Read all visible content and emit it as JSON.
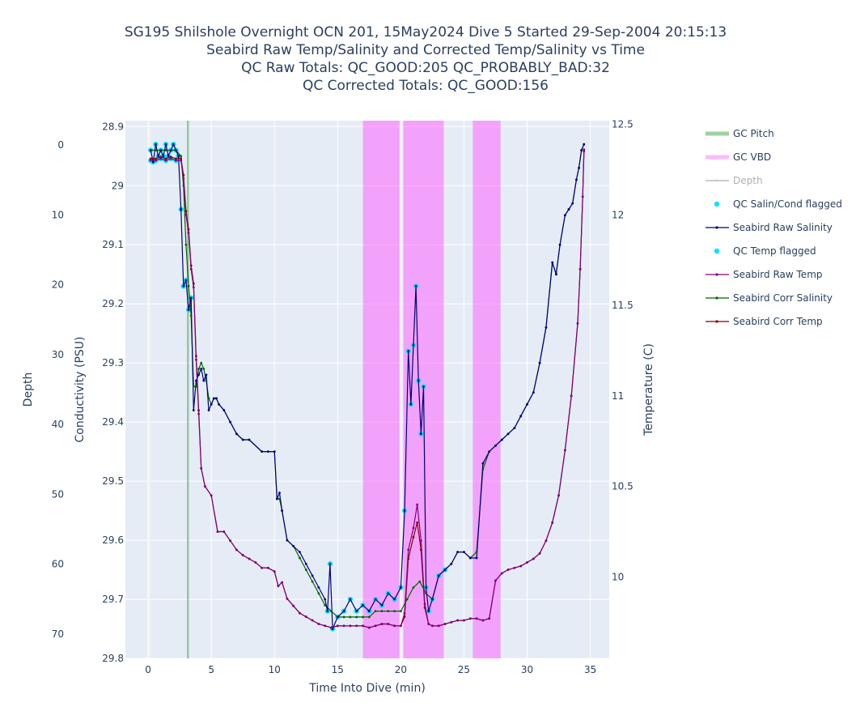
{
  "chart_data": {
    "type": "line",
    "title_lines": [
      "SG195 Shilshole Overnight OCN 201, 15May2024 Dive 5 Started 29-Sep-2004 20:15:13",
      "Seabird Raw Temp/Salinity and Corrected Temp/Salinity vs Time",
      "QC Raw Totals: QC_GOOD:205 QC_PROBABLY_BAD:32",
      "QC Corrected Totals: QC_GOOD:156"
    ],
    "xlabel": "Time Into Dive (min)",
    "ylabel_depth": "Depth",
    "ylabel_cond": "Conductivity (PSU)",
    "ylabel_temp": "Temperature (C)",
    "x_range": [
      -1.8,
      36.5
    ],
    "depth_range": [
      73.5,
      -3.5
    ],
    "cond_range": [
      29.8,
      28.89
    ],
    "temp_range": [
      9.55,
      12.52
    ],
    "x_ticks": [
      "0",
      "5",
      "10",
      "15",
      "20",
      "25",
      "30",
      "35"
    ],
    "depth_ticks": [
      "0",
      "10",
      "20",
      "30",
      "40",
      "50",
      "60",
      "70"
    ],
    "cond_ticks": [
      "28.9",
      "29",
      "29.1",
      "29.2",
      "29.3",
      "29.4",
      "29.5",
      "29.6",
      "29.7",
      "29.8"
    ],
    "temp_ticks": [
      "10",
      "10.5",
      "11",
      "11.5",
      "12",
      "12.5"
    ],
    "gc_pitch_x": [
      3.15
    ],
    "gc_vbd_x": [
      [
        17.0,
        19.9
      ],
      [
        20.2,
        23.4
      ],
      [
        25.7,
        27.9
      ]
    ],
    "depth_line_x": [
      0.1,
      20.05
    ],
    "series": [
      {
        "name": "GC Pitch",
        "color": "#2ca02c",
        "legend_style": "thickline"
      },
      {
        "name": "GC VBD",
        "color": "#ff66ff",
        "legend_style": "thickline"
      },
      {
        "name": "Depth",
        "color": "#cccccc",
        "legend_style": "line",
        "hidden": true
      },
      {
        "name": "QC Salin/Cond flagged",
        "color": "#00e5ff",
        "legend_style": "dot"
      },
      {
        "name": "Seabird Raw Salinity",
        "color": "#000080",
        "legend_style": "linemarker"
      },
      {
        "name": "QC Temp flagged",
        "color": "#00e5ff",
        "legend_style": "dot"
      },
      {
        "name": "Seabird Raw Temp",
        "color": "#800080",
        "legend_style": "linemarker"
      },
      {
        "name": "Seabird Corr Salinity",
        "color": "#006400",
        "legend_style": "linemarker"
      },
      {
        "name": "Seabird Corr Temp",
        "color": "#8b0000",
        "legend_style": "linemarker"
      }
    ],
    "raw_salinity": {
      "x": [
        0.2,
        0.4,
        0.6,
        0.8,
        1.0,
        1.2,
        1.4,
        1.6,
        1.8,
        2.0,
        2.2,
        2.4,
        2.6,
        2.8,
        3.0,
        3.2,
        3.4,
        3.6,
        3.8,
        4.0,
        4.2,
        4.4,
        4.6,
        4.8,
        5.0,
        5.2,
        5.4,
        5.6,
        6.0,
        6.5,
        7.0,
        7.5,
        8.0,
        9.0,
        9.5,
        10.0,
        10.2,
        10.4,
        10.6,
        11.0,
        11.5,
        12.0,
        12.5,
        13.0,
        13.5,
        14.0,
        14.2,
        14.4,
        14.6,
        15.0,
        15.5,
        16.0,
        16.5,
        17.0,
        17.5,
        18.0,
        18.5,
        19.0,
        19.5,
        20.0,
        20.3,
        20.6,
        20.8,
        21.0,
        21.2,
        21.4,
        21.6,
        21.8,
        22.0,
        22.2,
        22.5,
        23.0,
        23.5,
        24.0,
        24.5,
        25.0,
        25.5,
        26.0,
        26.5,
        27.0,
        27.5,
        28.0,
        28.5,
        29.0,
        29.5,
        30.0,
        30.5,
        31.0,
        31.5,
        32.0,
        32.3,
        32.6,
        33.0,
        33.3,
        33.6,
        33.9,
        34.1,
        34.3,
        34.5
      ],
      "y": [
        28.94,
        28.96,
        28.93,
        28.95,
        28.94,
        28.95,
        28.93,
        28.95,
        28.94,
        28.93,
        28.94,
        28.95,
        29.04,
        29.17,
        29.16,
        29.21,
        29.19,
        29.38,
        29.33,
        29.32,
        29.31,
        29.33,
        29.32,
        29.38,
        29.37,
        29.36,
        29.36,
        29.37,
        29.38,
        29.4,
        29.42,
        29.43,
        29.43,
        29.45,
        29.45,
        29.45,
        29.53,
        29.52,
        29.55,
        29.6,
        29.61,
        29.62,
        29.64,
        29.66,
        29.68,
        29.7,
        29.72,
        29.64,
        29.75,
        29.73,
        29.72,
        29.7,
        29.72,
        29.71,
        29.72,
        29.7,
        29.71,
        29.69,
        29.7,
        29.68,
        29.55,
        29.28,
        29.37,
        29.27,
        29.17,
        29.33,
        29.42,
        29.34,
        29.68,
        29.72,
        29.7,
        29.66,
        29.65,
        29.64,
        29.62,
        29.62,
        29.63,
        29.63,
        29.47,
        29.45,
        29.44,
        29.43,
        29.42,
        29.41,
        29.39,
        29.37,
        29.35,
        29.3,
        29.24,
        29.13,
        29.15,
        29.1,
        29.05,
        29.04,
        29.03,
        28.99,
        28.97,
        28.94,
        28.93
      ]
    },
    "corr_salinity": {
      "x": [
        0.2,
        0.6,
        1.0,
        1.4,
        1.8,
        2.2,
        2.6,
        2.8,
        3.0,
        3.2,
        3.4,
        3.6,
        3.8,
        4.0,
        4.2,
        4.4,
        4.6,
        4.8,
        5.0,
        5.2,
        5.4,
        5.6,
        6.0,
        6.5,
        7.0,
        7.5,
        8.0,
        9.0,
        9.5,
        10.0,
        10.2,
        10.4,
        10.6,
        11.0,
        11.5,
        12.0,
        12.5,
        13.0,
        13.5,
        14.0,
        14.5,
        15.0,
        15.5,
        16.0,
        16.5,
        17.0,
        17.5,
        18.0,
        18.5,
        19.0,
        19.5,
        20.0,
        20.5,
        21.0,
        21.5,
        22.0,
        22.5,
        23.0,
        23.5,
        24.0,
        24.5,
        25.0,
        25.5,
        26.0,
        26.5,
        27.0,
        27.5,
        28.0,
        28.5,
        29.0,
        29.5,
        30.0,
        30.5,
        31.0,
        31.5,
        32.0,
        32.3,
        32.6,
        33.0,
        33.3,
        33.6,
        33.9,
        34.1,
        34.3,
        34.5
      ],
      "y": [
        28.94,
        28.94,
        28.94,
        28.94,
        28.94,
        28.94,
        28.95,
        29.0,
        29.1,
        29.17,
        29.22,
        29.34,
        29.34,
        29.31,
        29.3,
        29.31,
        29.33,
        29.36,
        29.37,
        29.36,
        29.36,
        29.37,
        29.38,
        29.4,
        29.42,
        29.43,
        29.43,
        29.45,
        29.45,
        29.45,
        29.53,
        29.53,
        29.55,
        29.6,
        29.61,
        29.63,
        29.65,
        29.67,
        29.69,
        29.71,
        29.72,
        29.73,
        29.73,
        29.73,
        29.73,
        29.73,
        29.73,
        29.72,
        29.72,
        29.72,
        29.72,
        29.72,
        29.7,
        29.68,
        29.67,
        29.69,
        29.7,
        29.66,
        29.65,
        29.64,
        29.62,
        29.62,
        29.63,
        29.62,
        29.48,
        29.45,
        29.44,
        29.43,
        29.42,
        29.41,
        29.39,
        29.37,
        29.35,
        29.3,
        29.24,
        29.13,
        29.15,
        29.1,
        29.05,
        29.04,
        29.03,
        28.99,
        28.97,
        28.94,
        28.93
      ]
    },
    "raw_temp": {
      "x": [
        0.2,
        0.6,
        1.0,
        1.4,
        1.8,
        2.2,
        2.6,
        2.8,
        3.0,
        3.2,
        3.4,
        3.6,
        3.8,
        4.0,
        4.2,
        4.5,
        5.0,
        5.5,
        6.0,
        6.5,
        7.0,
        7.5,
        8.0,
        8.5,
        9.0,
        9.5,
        10.0,
        10.3,
        10.6,
        11.0,
        11.5,
        12.0,
        12.5,
        13.0,
        13.5,
        14.0,
        14.5,
        15.0,
        15.5,
        16.0,
        16.5,
        17.0,
        17.5,
        18.0,
        18.5,
        19.0,
        19.5,
        20.0,
        20.3,
        20.6,
        21.0,
        21.3,
        21.6,
        21.9,
        22.2,
        22.5,
        23.0,
        23.5,
        24.0,
        24.5,
        25.0,
        25.5,
        26.0,
        26.5,
        27.0,
        27.5,
        28.0,
        28.5,
        29.0,
        29.5,
        30.0,
        30.5,
        31.0,
        31.5,
        32.0,
        32.5,
        33.0,
        33.5,
        34.0,
        34.2,
        34.4,
        34.5
      ],
      "y": [
        12.3,
        12.3,
        12.31,
        12.3,
        12.31,
        12.3,
        12.3,
        12.2,
        12.0,
        11.9,
        11.7,
        11.6,
        11.2,
        10.9,
        10.6,
        10.5,
        10.45,
        10.25,
        10.25,
        10.2,
        10.15,
        10.12,
        10.1,
        10.08,
        10.05,
        10.05,
        10.03,
        9.95,
        9.97,
        9.88,
        9.84,
        9.8,
        9.78,
        9.76,
        9.74,
        9.73,
        9.72,
        9.73,
        9.73,
        9.73,
        9.73,
        9.73,
        9.72,
        9.73,
        9.74,
        9.74,
        9.73,
        9.73,
        9.8,
        10.15,
        10.27,
        10.4,
        10.2,
        9.85,
        9.74,
        9.73,
        9.73,
        9.74,
        9.75,
        9.76,
        9.76,
        9.77,
        9.77,
        9.76,
        9.77,
        9.98,
        10.02,
        10.04,
        10.05,
        10.06,
        10.08,
        10.1,
        10.13,
        10.2,
        10.3,
        10.45,
        10.7,
        11.0,
        11.4,
        11.7,
        12.1,
        12.35
      ]
    },
    "corr_temp": {
      "x": [
        0.2,
        0.6,
        1.0,
        1.4,
        1.8,
        2.2,
        2.6,
        2.8,
        3.0,
        3.2,
        3.4,
        3.6,
        3.8,
        4.0,
        4.2,
        4.5,
        5.0,
        5.5,
        6.0,
        6.5,
        7.0,
        7.5,
        8.0,
        8.5,
        9.0,
        9.5,
        10.0,
        10.3,
        10.6,
        11.0,
        11.5,
        12.0,
        12.5,
        13.0,
        13.5,
        14.0,
        14.5,
        15.0,
        15.5,
        16.0,
        16.5,
        17.0,
        17.5,
        18.0,
        18.5,
        19.0,
        19.5,
        20.0,
        20.3,
        20.6,
        21.0,
        21.3,
        21.6,
        21.9,
        22.2,
        22.5,
        23.0,
        23.5,
        24.0,
        24.5,
        25.0,
        25.5,
        26.0,
        26.5,
        27.0,
        27.5,
        28.0,
        28.5,
        29.0,
        29.5,
        30.0,
        30.5,
        31.0,
        31.5,
        32.0,
        32.5,
        33.0,
        33.5,
        34.0,
        34.2,
        34.4,
        34.5
      ],
      "y": [
        12.31,
        12.31,
        12.32,
        12.31,
        12.32,
        12.31,
        12.31,
        12.22,
        12.02,
        11.92,
        11.72,
        11.62,
        11.22,
        10.92,
        10.6,
        10.5,
        10.45,
        10.25,
        10.25,
        10.2,
        10.15,
        10.12,
        10.1,
        10.08,
        10.05,
        10.05,
        10.03,
        9.95,
        9.97,
        9.88,
        9.84,
        9.8,
        9.78,
        9.76,
        9.74,
        9.73,
        9.72,
        9.73,
        9.73,
        9.73,
        9.73,
        9.73,
        9.72,
        9.73,
        9.74,
        9.74,
        9.73,
        9.73,
        9.78,
        10.1,
        10.22,
        10.3,
        10.15,
        9.83,
        9.74,
        9.73,
        9.73,
        9.74,
        9.75,
        9.76,
        9.76,
        9.77,
        9.77,
        9.76,
        9.77,
        9.98,
        10.02,
        10.04,
        10.05,
        10.06,
        10.08,
        10.1,
        10.13,
        10.2,
        10.3,
        10.45,
        10.7,
        11.0,
        11.4,
        11.7,
        12.1,
        12.36
      ]
    },
    "salin_flagged": {
      "x": [
        0.2,
        0.4,
        0.6,
        0.8,
        1.0,
        1.2,
        1.4,
        1.6,
        1.8,
        2.0,
        2.2,
        2.4,
        2.6,
        2.8,
        3.0,
        3.2,
        3.4,
        14.2,
        14.4,
        14.6,
        15.0,
        15.5,
        16.0,
        16.5,
        17.0,
        17.5,
        18.0,
        18.5,
        19.0,
        19.5,
        20.0,
        20.3,
        20.6,
        20.8,
        21.0,
        21.2,
        21.4,
        21.6,
        21.8,
        22.0,
        22.2,
        22.5,
        23.0,
        23.5
      ],
      "y": [
        28.94,
        28.96,
        28.93,
        28.95,
        28.94,
        28.95,
        28.93,
        28.95,
        28.94,
        28.93,
        28.94,
        28.95,
        29.04,
        29.17,
        29.16,
        29.21,
        29.19,
        29.72,
        29.64,
        29.75,
        29.73,
        29.72,
        29.7,
        29.72,
        29.71,
        29.72,
        29.7,
        29.71,
        29.69,
        29.7,
        29.68,
        29.55,
        29.28,
        29.37,
        29.27,
        29.17,
        29.33,
        29.42,
        29.34,
        29.68,
        29.72,
        29.7,
        29.66,
        29.65
      ]
    },
    "temp_flagged": {
      "x": [
        0.2,
        0.6,
        1.0,
        1.4,
        1.8,
        2.2
      ],
      "y": [
        12.3,
        12.3,
        12.31,
        12.3,
        12.31,
        12.3
      ]
    }
  }
}
